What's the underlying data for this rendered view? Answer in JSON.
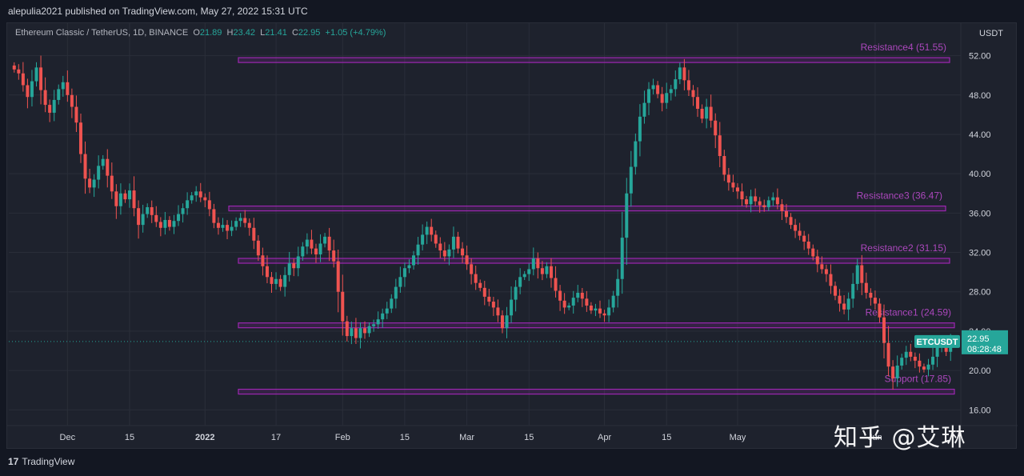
{
  "publish": {
    "text": "alepulia2021 published on TradingView.com, May 27, 2022 15:31 UTC"
  },
  "legend": {
    "symbol": "Ethereum Classic / TetherUS, 1D, BINANCE",
    "o_label": "O",
    "o": "21.89",
    "h_label": "H",
    "h": "23.42",
    "l_label": "L",
    "l": "21.41",
    "c_label": "C",
    "c": "22.95",
    "change": "+1.05 (+4.79%)"
  },
  "axis_unit": "USDT",
  "price_tag": {
    "ticker": "ETCUSDT",
    "price": "22.95",
    "countdown": "08:28:48"
  },
  "footer": {
    "brand": "TradingView",
    "logo": "17"
  },
  "watermark": "知乎 @艾琳",
  "colors": {
    "up": "#26a69a",
    "down": "#ef5350",
    "zone": "#9c27b0",
    "zone_label": "#ab47bc",
    "grid": "#2a2e39",
    "bg": "#1e222d"
  },
  "chart_data": {
    "type": "candlestick",
    "title": "Ethereum Classic / TetherUS, 1D, BINANCE",
    "ylabel": "USDT",
    "ylim": [
      14.4,
      55.3
    ],
    "y_ticks": [
      "52.00",
      "48.00",
      "44.00",
      "40.00",
      "36.00",
      "32.00",
      "28.00",
      "24.00",
      "20.00",
      "16.00"
    ],
    "x_ticks": [
      "Dec",
      "15",
      "2022",
      "17",
      "Feb",
      "15",
      "Mar",
      "15",
      "Apr",
      "15",
      "May",
      "Jun"
    ],
    "date_range": [
      "2021-11-19",
      "2022-05-27"
    ],
    "zones": [
      {
        "label": "Resistance4 (51.55)",
        "level": 51.55
      },
      {
        "label": "Resistance3 (36.47)",
        "level": 36.47
      },
      {
        "label": "Resistance2 (31.15)",
        "level": 31.15
      },
      {
        "label": "Resistance1 (24.59)",
        "level": 24.59
      },
      {
        "label": "Support (17.85)",
        "level": 17.85
      }
    ],
    "last_close": 22.95,
    "closes": [
      50.6,
      50.2,
      49.0,
      47.8,
      49.4,
      50.8,
      48.5,
      47.0,
      46.2,
      47.5,
      48.6,
      49.3,
      48.0,
      46.8,
      45.2,
      42.0,
      39.5,
      38.6,
      39.4,
      40.8,
      41.5,
      39.8,
      38.2,
      36.7,
      38.0,
      37.4,
      38.3,
      36.5,
      34.8,
      35.9,
      36.6,
      35.8,
      35.1,
      34.5,
      35.3,
      34.6,
      35.2,
      35.9,
      36.5,
      37.3,
      37.8,
      38.2,
      37.6,
      37.3,
      36.4,
      35.0,
      34.5,
      34.8,
      34.2,
      34.6,
      35.2,
      35.5,
      35.0,
      34.5,
      33.2,
      31.7,
      30.6,
      29.5,
      28.8,
      29.3,
      28.5,
      29.7,
      30.9,
      30.4,
      31.6,
      32.6,
      33.3,
      32.4,
      31.8,
      32.9,
      33.6,
      32.2,
      31.1,
      28.0,
      25.0,
      23.5,
      24.3,
      23.3,
      24.3,
      23.8,
      24.5,
      24.7,
      25.2,
      25.8,
      26.3,
      27.3,
      28.5,
      29.5,
      30.4,
      30.7,
      31.7,
      32.8,
      33.8,
      34.6,
      33.8,
      32.9,
      32.2,
      31.6,
      32.3,
      33.6,
      32.4,
      31.7,
      30.8,
      29.8,
      28.9,
      28.4,
      27.5,
      27.0,
      26.4,
      25.6,
      24.3,
      25.6,
      27.2,
      28.5,
      29.5,
      29.8,
      30.3,
      31.4,
      30.4,
      29.8,
      30.6,
      29.4,
      28.1,
      27.1,
      26.4,
      26.6,
      27.4,
      27.9,
      27.3,
      26.6,
      26.1,
      26.3,
      25.8,
      25.6,
      26.4,
      27.6,
      29.3,
      33.5,
      38.0,
      40.7,
      43.3,
      45.8,
      47.2,
      48.6,
      49.0,
      48.1,
      47.2,
      48.2,
      48.6,
      49.6,
      50.8,
      49.5,
      48.5,
      47.8,
      46.6,
      45.6,
      46.8,
      45.4,
      43.9,
      41.8,
      39.9,
      39.1,
      38.6,
      38.2,
      37.4,
      36.9,
      37.7,
      37.2,
      36.8,
      36.6,
      37.3,
      37.6,
      36.9,
      36.2,
      35.6,
      34.8,
      34.2,
      33.7,
      33.1,
      32.4,
      31.6,
      30.8,
      30.3,
      29.8,
      28.6,
      27.6,
      26.8,
      26.2,
      27.3,
      28.8,
      30.7,
      28.9,
      27.9,
      27.4,
      26.8,
      25.4,
      22.8,
      20.4,
      19.2,
      20.5,
      21.3,
      21.9,
      21.4,
      21.0,
      20.4,
      20.1,
      20.6,
      21.4,
      22.4,
      22.8,
      21.9,
      22.95
    ]
  }
}
